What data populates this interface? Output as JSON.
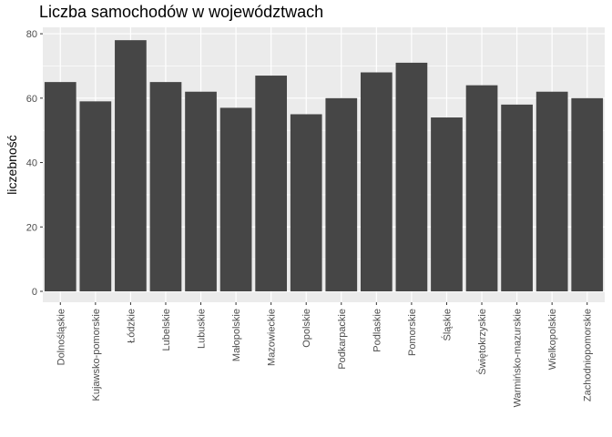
{
  "chart_data": {
    "type": "bar",
    "title": "Liczba samochodów w województwach",
    "xlabel": "",
    "ylabel": "liczebność",
    "ylim": [
      0,
      82
    ],
    "yticks": [
      0,
      20,
      40,
      60,
      80
    ],
    "categories": [
      "Dolnośląskie",
      "Kujawsko-pomorskie",
      "Łódzkie",
      "Lubelskie",
      "Lubuskie",
      "Małopolskie",
      "Mazowieckie",
      "Opolskie",
      "Podkarpackie",
      "Podlaskie",
      "Pomorskie",
      "Śląskie",
      "Świętokrzyskie",
      "Warmińsko-mazurskie",
      "Wielkopolskie",
      "Zachodniopomorskie"
    ],
    "values": [
      65,
      59,
      78,
      65,
      62,
      57,
      67,
      55,
      60,
      68,
      71,
      54,
      64,
      58,
      62,
      60
    ],
    "grid": true,
    "colors": {
      "bar": "#464646",
      "panel": "#ebebeb",
      "grid": "#ffffff"
    }
  }
}
